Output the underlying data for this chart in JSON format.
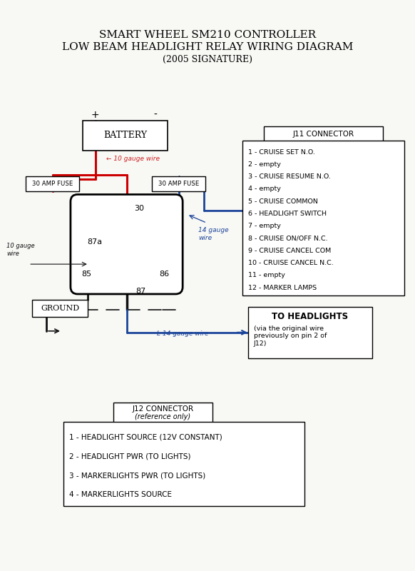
{
  "title_line1": "SMART WHEEL SM210 CONTROLLER",
  "title_line2": "LOW BEAM HEADLIGHT RELAY WIRING DIAGRAM",
  "title_line3": "(2005 SIGNATURE)",
  "bg_color": "#f8f8f5",
  "battery_label": "BATTERY",
  "fuse1_label": "30 AMP FUSE",
  "fuse2_label": "30 AMP FUSE",
  "ground_label": "GROUND",
  "j11_title": "J11 CONNECTOR",
  "j11_items": [
    "1 - CRUISE SET N.O.",
    "2 - empty",
    "3 - CRUISE RESUME N.O.",
    "4 - empty",
    "5 - CRUISE COMMON",
    "6 - HEADLIGHT SWITCH",
    "7 - empty",
    "8 - CRUISE ON/OFF N.C.",
    "9 - CRUISE CANCEL COM",
    "10 - CRUISE CANCEL N.C.",
    "11 - empty",
    "12 - MARKER LAMPS"
  ],
  "j12_title": "J12 CONNECTOR",
  "j12_subtitle": "(reference only)",
  "j12_items": [
    "1 - HEADLIGHT SOURCE (12V CONSTANT)",
    "2 - HEADLIGHT PWR (TO LIGHTS)",
    "3 - MARKERLIGHTS PWR (TO LIGHTS)",
    "4 - MARKERLIGHTS SOURCE"
  ],
  "headlights_label": "TO HEADLIGHTS",
  "headlights_sub": "(via the original wire\npreviously on pin 2 of\nJ12)",
  "red_color": "#cc0000",
  "blue_color": "#1a4499",
  "black_color": "#111111",
  "ann_red": "#cc2222",
  "ann_blue": "#1a4499"
}
